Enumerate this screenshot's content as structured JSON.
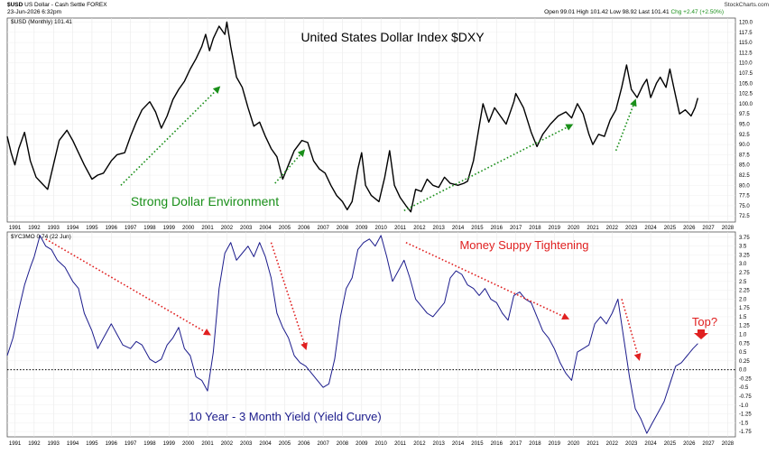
{
  "header": {
    "symbol": "$USD",
    "description": "US Dollar - Cash Settle",
    "exchange": "FOREX",
    "date": "23-Jun-2026 6:32pm",
    "open": "Open 99.01",
    "high": "High 101.42",
    "low": "Low 98.92",
    "last": "Last 101.41",
    "chg": "Chg +2.47 (+2.50%)",
    "chg_color": "#1a8f1a",
    "logo": "StockCharts.com"
  },
  "chart_data": [
    {
      "type": "line",
      "panel": "top",
      "legend": "$USD (Monthly) 101.41",
      "title": "United States Dollar Index $DXY",
      "ylim": [
        71,
        121
      ],
      "xlim": [
        1990.6,
        2028.4
      ],
      "yticks": [
        72.5,
        75.0,
        77.5,
        80.0,
        82.5,
        85.0,
        87.5,
        90.0,
        92.5,
        95.0,
        97.5,
        100.0,
        102.5,
        105.0,
        107.5,
        110.0,
        112.5,
        115.0,
        117.5,
        120.0
      ],
      "xticks": [
        1991,
        1992,
        1993,
        1994,
        1995,
        1996,
        1997,
        1998,
        1999,
        2000,
        2001,
        2002,
        2003,
        2004,
        2005,
        2006,
        2007,
        2008,
        2009,
        2010,
        2011,
        2012,
        2013,
        2014,
        2015,
        2016,
        2017,
        2018,
        2019,
        2020,
        2021,
        2022,
        2023,
        2024,
        2025,
        2026,
        2027,
        2028
      ],
      "line_color": "#000000",
      "series": [
        {
          "x": [
            1990.6,
            1990.8,
            1991.0,
            1991.2,
            1991.5,
            1991.8,
            1992.1,
            1992.4,
            1992.7,
            1993.0,
            1993.3,
            1993.7,
            1994.0,
            1994.3,
            1994.6,
            1995.0,
            1995.3,
            1995.6,
            1996.0,
            1996.3,
            1996.7,
            1997.0,
            1997.3,
            1997.6,
            1998.0,
            1998.3,
            1998.6,
            1998.9,
            1999.2,
            1999.5,
            1999.8,
            2000.1,
            2000.4,
            2000.7,
            2000.9,
            2001.1,
            2001.3,
            2001.6,
            2001.9,
            2002.0,
            2002.2,
            2002.5,
            2002.8,
            2003.1,
            2003.4,
            2003.7,
            2004.0,
            2004.3,
            2004.6,
            2004.9,
            2005.2,
            2005.5,
            2005.9,
            2006.2,
            2006.5,
            2006.8,
            2007.1,
            2007.4,
            2007.7,
            2008.0,
            2008.25,
            2008.5,
            2008.8,
            2009.0,
            2009.2,
            2009.5,
            2009.9,
            2010.2,
            2010.45,
            2010.7,
            2011.0,
            2011.3,
            2011.55,
            2011.8,
            2012.1,
            2012.4,
            2012.7,
            2013.0,
            2013.3,
            2013.6,
            2014.0,
            2014.3,
            2014.5,
            2014.8,
            2015.1,
            2015.3,
            2015.6,
            2015.9,
            2016.2,
            2016.5,
            2016.9,
            2017.0,
            2017.4,
            2017.8,
            2018.1,
            2018.4,
            2018.8,
            2019.2,
            2019.6,
            2019.9,
            2020.2,
            2020.5,
            2020.8,
            2021.0,
            2021.3,
            2021.6,
            2021.9,
            2022.2,
            2022.5,
            2022.75,
            2023.0,
            2023.3,
            2023.6,
            2023.8,
            2024.0,
            2024.3,
            2024.5,
            2024.8,
            2025.0,
            2025.2,
            2025.5,
            2025.8,
            2026.1,
            2026.3,
            2026.45
          ],
          "y": [
            92.0,
            88.0,
            85.0,
            89.0,
            93.0,
            86.0,
            82.0,
            80.5,
            79.0,
            85.0,
            91.0,
            93.5,
            91.0,
            88.0,
            85.0,
            81.5,
            82.5,
            83.0,
            86.0,
            87.5,
            88.0,
            92.0,
            95.5,
            98.5,
            100.5,
            98.0,
            94.0,
            97.0,
            101.0,
            103.5,
            105.5,
            108.5,
            111.0,
            114.0,
            117.0,
            113.0,
            116.0,
            119.0,
            117.0,
            120.0,
            114.0,
            106.5,
            104.0,
            99.0,
            94.5,
            95.5,
            92.0,
            89.0,
            87.0,
            81.5,
            85.0,
            88.5,
            91.0,
            90.5,
            86.0,
            84.0,
            83.0,
            80.0,
            77.5,
            76.0,
            74.0,
            76.0,
            84.0,
            88.0,
            80.0,
            77.5,
            76.0,
            82.0,
            88.5,
            80.0,
            77.0,
            75.0,
            73.5,
            79.0,
            78.5,
            81.5,
            80.0,
            79.5,
            82.0,
            80.5,
            80.0,
            80.5,
            81.0,
            86.0,
            94.5,
            100.0,
            95.5,
            99.0,
            97.0,
            95.0,
            100.5,
            102.5,
            99.0,
            93.0,
            89.5,
            92.5,
            95.0,
            97.0,
            98.0,
            96.5,
            100.0,
            97.5,
            92.5,
            90.0,
            92.5,
            92.0,
            96.0,
            98.5,
            104.0,
            109.5,
            103.5,
            101.5,
            104.5,
            106.0,
            101.5,
            105.0,
            106.5,
            104.0,
            108.5,
            104.0,
            97.5,
            98.5,
            97.0,
            99.0,
            101.4
          ]
        }
      ],
      "annotations": [
        {
          "text": "Strong Dollar Environment",
          "color": "#1a8f1a"
        }
      ],
      "arrows": [
        {
          "from": [
            1996.5,
            80.0
          ],
          "to": [
            2001.6,
            104.0
          ],
          "color": "#1a8f1a"
        },
        {
          "from": [
            2004.5,
            80.5
          ],
          "to": [
            2006.0,
            88.5
          ],
          "color": "#1a8f1a"
        },
        {
          "from": [
            2011.2,
            73.8
          ],
          "to": [
            2019.9,
            94.8
          ],
          "color": "#1a8f1a"
        },
        {
          "from": [
            2022.2,
            88.5
          ],
          "to": [
            2023.2,
            100.8
          ],
          "color": "#1a8f1a"
        }
      ]
    },
    {
      "type": "line",
      "panel": "bottom",
      "legend": "$YC3MO 0.74 (22 Jun)",
      "ylim": [
        -1.9,
        3.9
      ],
      "xlim": [
        1990.6,
        2028.4
      ],
      "yticks": [
        -1.75,
        -1.5,
        -1.25,
        -1.0,
        -0.75,
        -0.5,
        -0.25,
        0.0,
        0.25,
        0.5,
        0.75,
        1.0,
        1.25,
        1.5,
        1.75,
        2.0,
        2.25,
        2.5,
        2.75,
        3.0,
        3.25,
        3.5,
        3.75
      ],
      "xticks": [
        1991,
        1992,
        1993,
        1994,
        1995,
        1996,
        1997,
        1998,
        1999,
        2000,
        2001,
        2002,
        2003,
        2004,
        2005,
        2006,
        2007,
        2008,
        2009,
        2010,
        2011,
        2012,
        2013,
        2014,
        2015,
        2016,
        2017,
        2018,
        2019,
        2020,
        2021,
        2022,
        2023,
        2024,
        2025,
        2026,
        2027,
        2028
      ],
      "line_color": "#1c1c8c",
      "reference_line": 0.0,
      "series": [
        {
          "x": [
            1990.6,
            1990.9,
            1991.2,
            1991.5,
            1991.8,
            1992.0,
            1992.3,
            1992.6,
            1992.9,
            1993.2,
            1993.6,
            1994.0,
            1994.3,
            1994.6,
            1995.0,
            1995.3,
            1995.6,
            1996.0,
            1996.3,
            1996.6,
            1997.0,
            1997.3,
            1997.6,
            1998.0,
            1998.3,
            1998.6,
            1998.9,
            1999.2,
            1999.5,
            1999.8,
            2000.1,
            2000.4,
            2000.7,
            2001.0,
            2001.3,
            2001.6,
            2001.9,
            2002.2,
            2002.5,
            2002.8,
            2003.1,
            2003.4,
            2003.7,
            2004.0,
            2004.3,
            2004.6,
            2004.9,
            2005.2,
            2005.5,
            2005.8,
            2006.1,
            2006.4,
            2006.7,
            2007.0,
            2007.3,
            2007.6,
            2007.9,
            2008.2,
            2008.5,
            2008.8,
            2009.1,
            2009.4,
            2009.7,
            2010.0,
            2010.3,
            2010.6,
            2010.9,
            2011.2,
            2011.5,
            2011.8,
            2012.1,
            2012.4,
            2012.7,
            2013.0,
            2013.3,
            2013.6,
            2013.9,
            2014.2,
            2014.5,
            2014.8,
            2015.1,
            2015.4,
            2015.7,
            2016.0,
            2016.3,
            2016.6,
            2016.9,
            2017.2,
            2017.5,
            2017.8,
            2018.1,
            2018.4,
            2018.7,
            2019.0,
            2019.3,
            2019.6,
            2019.9,
            2020.2,
            2020.5,
            2020.8,
            2021.1,
            2021.4,
            2021.7,
            2022.0,
            2022.3,
            2022.6,
            2022.9,
            2023.2,
            2023.5,
            2023.8,
            2024.1,
            2024.4,
            2024.7,
            2025.0,
            2025.3,
            2025.6,
            2025.9,
            2026.2,
            2026.45
          ],
          "y": [
            0.4,
            0.9,
            1.7,
            2.4,
            2.9,
            3.2,
            3.8,
            3.5,
            3.4,
            3.1,
            2.9,
            2.5,
            2.3,
            1.6,
            1.1,
            0.6,
            0.9,
            1.3,
            1.0,
            0.7,
            0.6,
            0.8,
            0.7,
            0.3,
            0.2,
            0.3,
            0.7,
            0.9,
            1.2,
            0.6,
            0.4,
            -0.2,
            -0.3,
            -0.6,
            0.5,
            2.3,
            3.3,
            3.6,
            3.1,
            3.3,
            3.5,
            3.2,
            3.6,
            3.2,
            2.6,
            1.6,
            1.2,
            0.9,
            0.4,
            0.2,
            0.1,
            -0.1,
            -0.3,
            -0.5,
            -0.4,
            0.3,
            1.5,
            2.3,
            2.6,
            3.4,
            3.6,
            3.7,
            3.5,
            3.8,
            3.2,
            2.5,
            2.8,
            3.1,
            2.6,
            2.0,
            1.8,
            1.6,
            1.5,
            1.7,
            1.9,
            2.6,
            2.8,
            2.7,
            2.4,
            2.3,
            2.1,
            2.3,
            2.0,
            1.9,
            1.6,
            1.4,
            2.1,
            2.2,
            2.0,
            1.9,
            1.5,
            1.1,
            0.9,
            0.6,
            0.2,
            -0.1,
            -0.3,
            0.5,
            0.6,
            0.7,
            1.3,
            1.5,
            1.3,
            1.6,
            2.0,
            0.9,
            -0.2,
            -1.1,
            -1.4,
            -1.8,
            -1.5,
            -1.2,
            -0.9,
            -0.4,
            0.1,
            0.2,
            0.4,
            0.6,
            0.74
          ]
        }
      ],
      "annotations": [
        {
          "text": "Money Suppy Tightening",
          "color": "#e02020"
        },
        {
          "text": "Top?",
          "color": "#e02020"
        },
        {
          "text": "10 Year - 3 Month Yield  (Yield Curve)",
          "color": "#1c1c8c"
        }
      ],
      "arrows": [
        {
          "from": [
            1992.6,
            3.7
          ],
          "to": [
            2001.1,
            1.0
          ],
          "color": "#e02020"
        },
        {
          "from": [
            2004.3,
            3.6
          ],
          "to": [
            2006.1,
            0.6
          ],
          "color": "#e02020"
        },
        {
          "from": [
            2011.3,
            3.6
          ],
          "to": [
            2019.7,
            1.45
          ],
          "color": "#e02020"
        },
        {
          "from": [
            2022.5,
            2.0
          ],
          "to": [
            2023.4,
            0.3
          ],
          "color": "#e02020"
        }
      ]
    }
  ]
}
